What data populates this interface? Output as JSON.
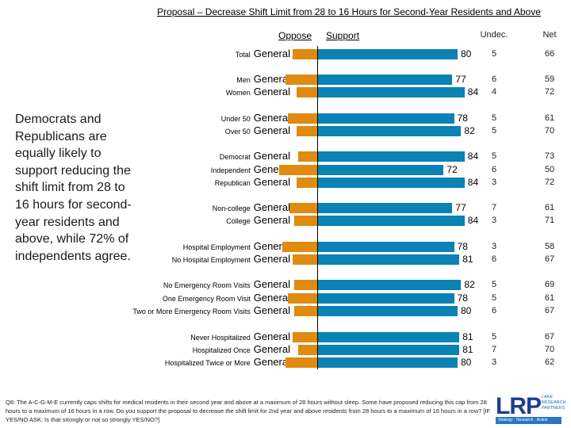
{
  "chart_data": {
    "type": "bar",
    "orientation": "horizontal-diverging",
    "title": "Proposal – Decrease Shift Limit from 28 to 16 Hours for Second-Year Residents and Above",
    "legend": [
      "Oppose",
      "Support"
    ],
    "columns": [
      "Undec.",
      "Net"
    ],
    "colors": {
      "oppose": "#E08A10",
      "support": "#0A82B4"
    },
    "overlay_text": "General",
    "groups": [
      [
        {
          "label": "Total",
          "support": 80,
          "oppose": 14,
          "undec": 5,
          "net": 66
        }
      ],
      [
        {
          "label": "Men",
          "support": 77,
          "oppose": 18,
          "undec": 6,
          "net": 59
        },
        {
          "label": "Women",
          "support": 84,
          "oppose": 12,
          "undec": 4,
          "net": 72
        }
      ],
      [
        {
          "label": "Under 50",
          "support": 78,
          "oppose": 17,
          "undec": 5,
          "net": 61
        },
        {
          "label": "Over 50",
          "support": 82,
          "oppose": 12,
          "undec": 5,
          "net": 70
        }
      ],
      [
        {
          "label": "Democrat",
          "support": 84,
          "oppose": 11,
          "undec": 5,
          "net": 73
        },
        {
          "label": "Independent",
          "support": 72,
          "oppose": 22,
          "undec": 6,
          "net": 50
        },
        {
          "label": "Republican",
          "support": 84,
          "oppose": 12,
          "undec": 3,
          "net": 72
        }
      ],
      [
        {
          "label": "Non-college",
          "support": 77,
          "oppose": 16,
          "undec": 7,
          "net": 61
        },
        {
          "label": "College",
          "support": 84,
          "oppose": 13,
          "undec": 3,
          "net": 71
        }
      ],
      [
        {
          "label": "Hospital Employment",
          "support": 78,
          "oppose": 20,
          "undec": 3,
          "net": 58
        },
        {
          "label": "No Hospital Employment",
          "support": 81,
          "oppose": 14,
          "undec": 6,
          "net": 67
        }
      ],
      [
        {
          "label": "No Emergency Room Visits",
          "support": 82,
          "oppose": 13,
          "undec": 5,
          "net": 69
        },
        {
          "label": "One Emergency Room Visit",
          "support": 78,
          "oppose": 17,
          "undec": 5,
          "net": 61
        },
        {
          "label": "Two or More Emergency Room Visits",
          "support": 80,
          "oppose": 13,
          "undec": 6,
          "net": 67
        }
      ],
      [
        {
          "label": "Never Hospitalized",
          "support": 81,
          "oppose": 14,
          "undec": 5,
          "net": 67
        },
        {
          "label": "Hospitalized Once",
          "support": 81,
          "oppose": 11,
          "undec": 7,
          "net": 70
        },
        {
          "label": "Hospitalized Twice or More",
          "support": 80,
          "oppose": 18,
          "undec": 3,
          "net": 62
        }
      ]
    ]
  },
  "side_text": "Democrats and Republicans are equally likely to support reducing the shift limit from 28 to 16 hours for second-year residents and above, while 72% of independents agree.",
  "footer": "Q8: The A-C-G-M-E currently caps shifts for medical residents in their second year and above at a maximum of 28 hours without sleep. Some have proposed reducing this cap from 28 hours to a maximum of 16 hours in a row. Do you support the proposal to decrease the shift limit for 2nd year and above residents from 28 hours to a maximum of 16 hours in a row? [IF YES/NO ASK: Is that strongly or not so strongly YES/NO?]",
  "logo": {
    "text": "LRP",
    "sub": "LAKE RESEARCH PARTNERS",
    "tagline": "Strategy Research Action"
  }
}
